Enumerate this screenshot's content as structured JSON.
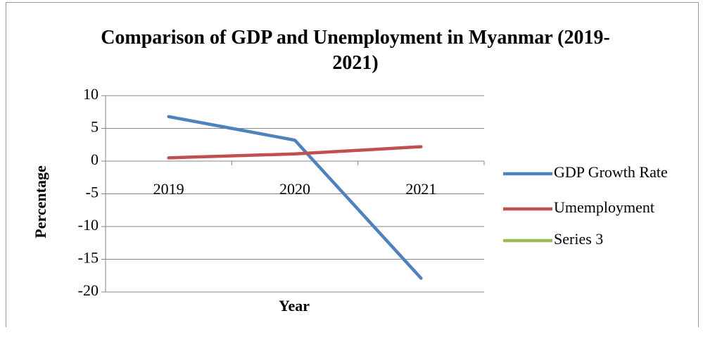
{
  "chart_data": {
    "type": "line",
    "title": "Comparison of GDP and Unemployment in Myanmar (2019-2021)",
    "x_label": "Year",
    "y_label": "Percentage",
    "categories": [
      "2019",
      "2020",
      "2021"
    ],
    "series": [
      {
        "name": "GDP Growth Rate",
        "color": "#4f81bd",
        "values": [
          6.8,
          3.2,
          -17.9
        ]
      },
      {
        "name": "Umemployment",
        "color": "#c0504d",
        "values": [
          0.5,
          1.1,
          2.2
        ]
      },
      {
        "name": "Series 3",
        "color": "#9bbb59",
        "values": [
          null,
          null,
          null
        ]
      }
    ],
    "ylim": [
      -20,
      10
    ],
    "yticks": [
      -20,
      -15,
      -10,
      -5,
      0,
      5,
      10
    ],
    "grid": true,
    "legend": "right"
  }
}
